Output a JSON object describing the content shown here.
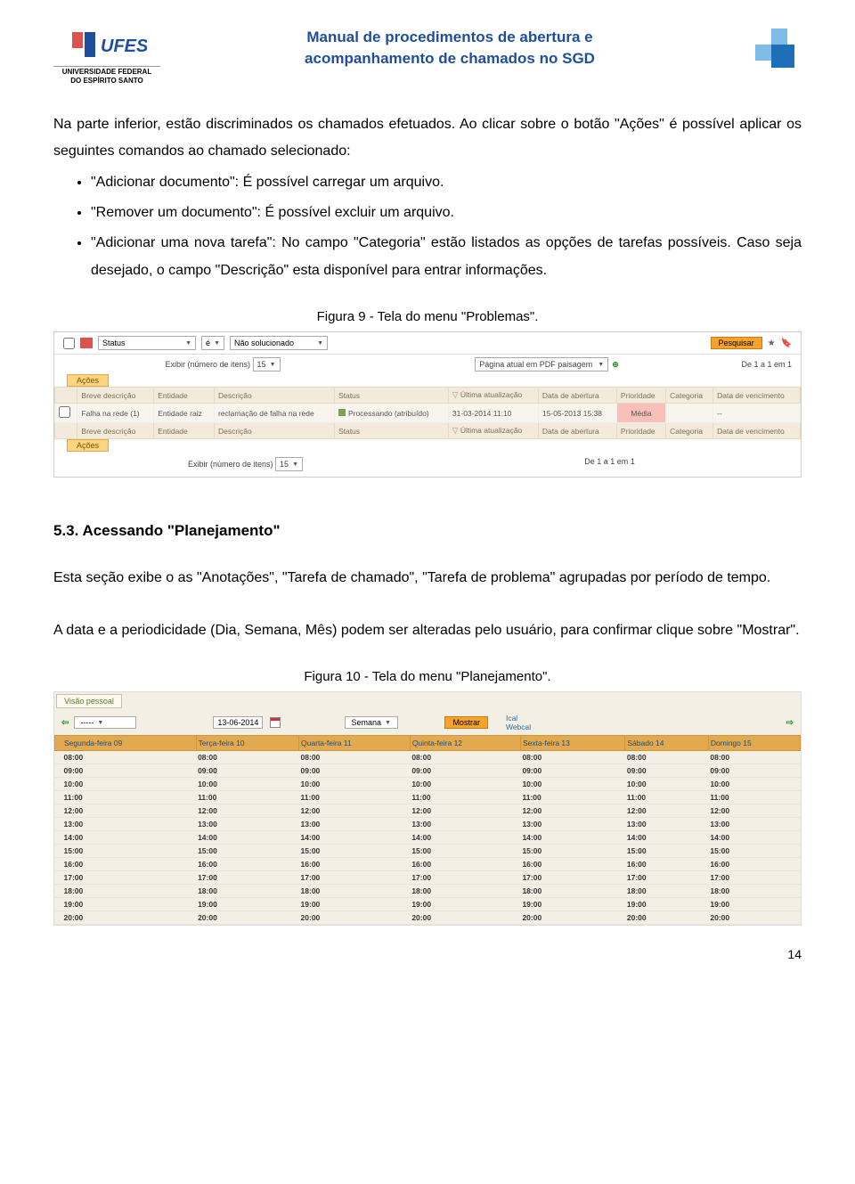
{
  "header": {
    "title_line1": "Manual de procedimentos de abertura e",
    "title_line2": "acompanhamento de chamados no SGD",
    "logo_sub1": "UNIVERSIDADE FEDERAL",
    "logo_sub2": "DO ESPÍRITO SANTO",
    "logo_text": "UFES",
    "colors": {
      "title": "#1f4e9c",
      "logo_blue": "#1d4f9c",
      "logo_red": "#d9534f",
      "right_light": "#7fbce8",
      "right_dark": "#1d6fb7"
    }
  },
  "paragraphs": {
    "p1": "Na parte inferior, estão discriminados os chamados efetuados. Ao clicar sobre o botão \"Ações\" é possível aplicar os seguintes comandos ao chamado selecionado:",
    "li1": "\"Adicionar documento\": É possível carregar um arquivo.",
    "li2": "\"Remover um documento\": É possível excluir um arquivo.",
    "li3": "\"Adicionar uma nova tarefa\": No campo \"Categoria\" estão listados as opções de tarefas possíveis. Caso seja desejado, o campo \"Descrição\" esta disponível para entrar informações."
  },
  "fig9": {
    "caption": "Figura 9 - Tela do menu \"Problemas\".",
    "status_label": "Status",
    "op": "é",
    "val": "Não solucionado",
    "search_btn": "Pesquisar",
    "exibir": "Exibir (número de itens)",
    "exibir_n": "15",
    "pagina": "Página atual em PDF paisagem",
    "range": "De 1 a 1 em 1",
    "acoes": "Ações",
    "headers": [
      "",
      "Breve descrição",
      "Entidade",
      "Descrição",
      "Status",
      "Última atualização",
      "Data de abertura",
      "Prioridade",
      "Categoria",
      "Data de vencimento"
    ],
    "row": {
      "breve": "Falha na rede (1)",
      "entidade": "Entidade raiz",
      "desc": "reclamação de falha na rede",
      "status": "Processando (atribuído)",
      "ult": "31-03-2014 11:10",
      "abert": "15-05-2013 15:38",
      "prio": "Média",
      "cat": "",
      "venc": "--"
    },
    "colors": {
      "acoes_bg": "#ffd47f",
      "header_bg": "#f3eadb",
      "row_bg": "#f8f5ee",
      "prio_bg": "#f9bfb9",
      "btn_bg": "#f7a32b"
    }
  },
  "section53": {
    "heading": "5.3.    Acessando \"Planejamento\"",
    "p1": "Esta seção exibe o as \"Anotações\", \"Tarefa de chamado\", \"Tarefa de problema\" agrupadas por período de tempo.",
    "p2": "A data e a periodicidade (Dia, Semana, Mês) podem ser alteradas pelo usuário, para confirmar clique sobre \"Mostrar\"."
  },
  "fig10": {
    "caption": "Figura 10 - Tela do menu \"Planejamento\".",
    "visao": "Visão pessoal",
    "sel1": "-----",
    "date": "13-06-2014",
    "period": "Semana",
    "mostrar": "Mostrar",
    "link1": "Ical",
    "link2": "Webcal",
    "days": [
      "Segunda-feira 09",
      "Terça-feira 10",
      "Quarta-feira 11",
      "Quinta-feira 12",
      "Sexta-feira 13",
      "Sábado 14",
      "Domingo 15"
    ],
    "hours": [
      "08:00",
      "09:00",
      "10:00",
      "11:00",
      "12:00",
      "13:00",
      "14:00",
      "15:00",
      "16:00",
      "17:00",
      "18:00",
      "19:00",
      "20:00"
    ],
    "colors": {
      "head_bg": "#e2a94e",
      "bg": "#f3efe4",
      "btn_bg": "#f7a32b",
      "link": "#2a6aa6"
    }
  },
  "page_number": "14"
}
